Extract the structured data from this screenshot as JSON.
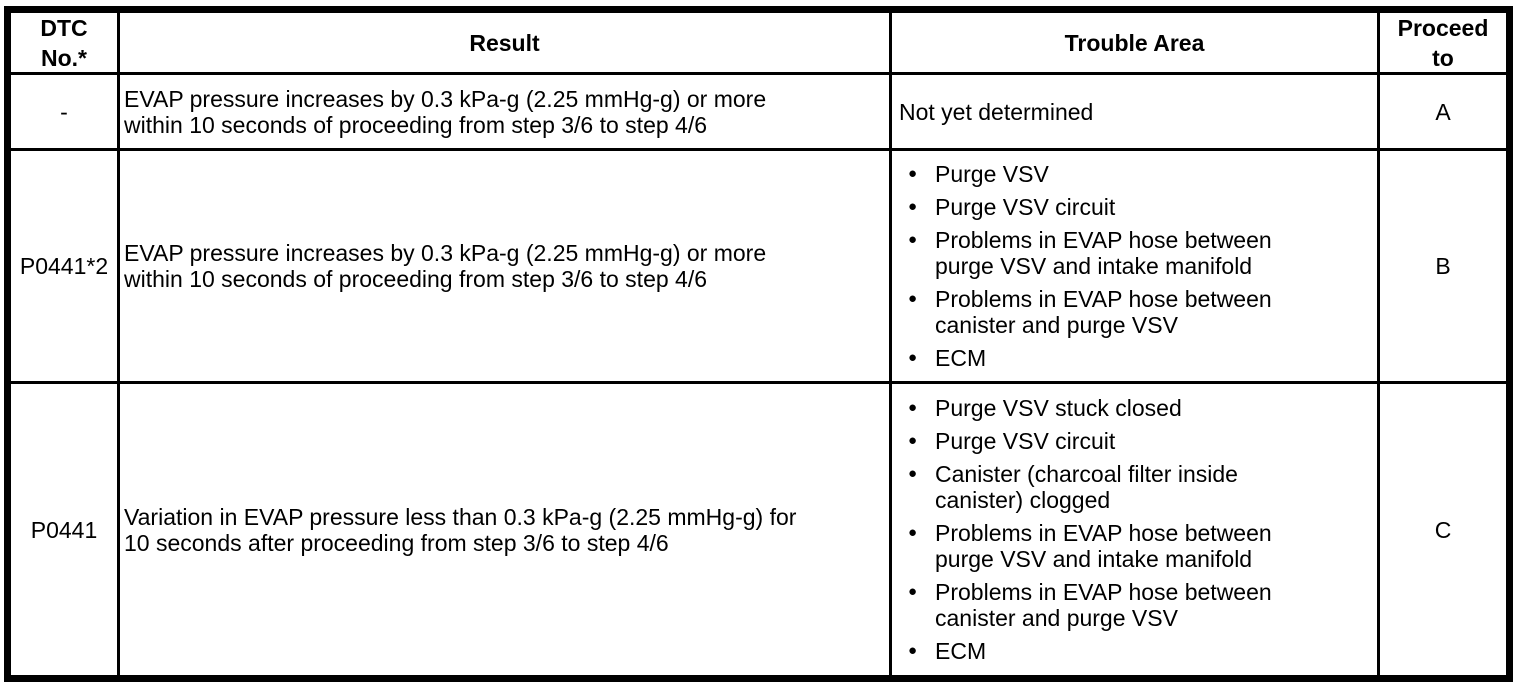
{
  "document": {
    "background_color": "#ffffff",
    "ink_color": "#000000"
  },
  "icons": {
    "bullet": "●"
  },
  "table": {
    "columns": [
      {
        "id": "dtc",
        "lines": [
          "DTC",
          "No.*"
        ]
      },
      {
        "id": "result",
        "lines": [
          "Result"
        ]
      },
      {
        "id": "trouble",
        "lines": [
          "Trouble Area"
        ]
      },
      {
        "id": "proceed",
        "lines": [
          "Proceed",
          "to"
        ]
      }
    ],
    "rows": [
      {
        "dtc": "-",
        "result_lines": [
          "EVAP pressure increases by 0.3 kPa-g (2.25 mmHg-g) or more",
          "within 10 seconds of proceeding from step 3/6 to step 4/6"
        ],
        "trouble_text": "Not yet determined",
        "proceed": "A"
      },
      {
        "dtc": "P0441*2",
        "result_lines": [
          "EVAP pressure increases by 0.3 kPa-g (2.25 mmHg-g) or more",
          "within 10 seconds of proceeding from step 3/6 to step 4/6"
        ],
        "trouble_items": [
          [
            "Purge VSV"
          ],
          [
            "Purge VSV circuit"
          ],
          [
            "Problems in EVAP hose between",
            "purge VSV and intake manifold"
          ],
          [
            "Problems in EVAP hose between",
            "canister and purge VSV"
          ],
          [
            "ECM"
          ]
        ],
        "proceed": "B"
      },
      {
        "dtc": "P0441",
        "result_lines": [
          "Variation in EVAP pressure less than 0.3 kPa-g (2.25 mmHg-g) for",
          "10 seconds after proceeding from step 3/6 to step 4/6"
        ],
        "trouble_items": [
          [
            "Purge VSV stuck closed"
          ],
          [
            "Purge VSV circuit"
          ],
          [
            "Canister (charcoal filter inside",
            "canister) clogged"
          ],
          [
            "Problems in EVAP hose between",
            "purge VSV and intake manifold"
          ],
          [
            "Problems in EVAP hose between",
            "canister and purge VSV"
          ],
          [
            "ECM"
          ]
        ],
        "proceed": "C"
      }
    ]
  }
}
